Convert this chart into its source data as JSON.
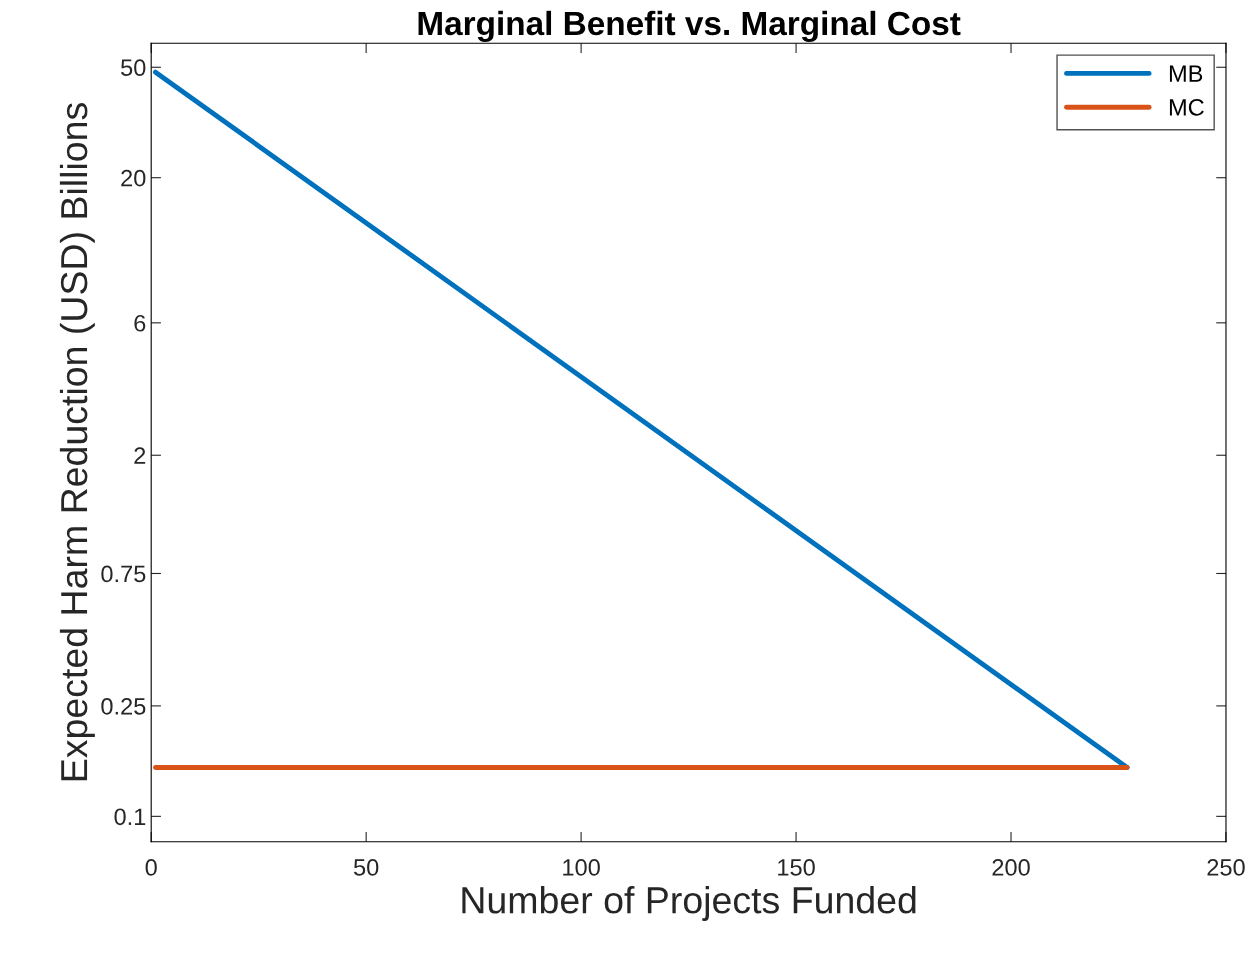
{
  "chart_data": {
    "type": "line",
    "title": "Marginal Benefit vs. Marginal Cost",
    "xlabel": "Number of Projects Funded",
    "ylabel": "Expected Harm Reduction (USD) Billions",
    "x": [
      1,
      227
    ],
    "series": [
      {
        "name": "MB",
        "color": "#0072bd",
        "values": [
          48,
          0.15
        ]
      },
      {
        "name": "MC",
        "color": "#d95319",
        "values": [
          0.15,
          0.15
        ]
      }
    ],
    "log": "y",
    "xlim": [
      0,
      250
    ],
    "ylim": [
      0.081,
      61
    ],
    "xticks": [
      0,
      50,
      100,
      150,
      200,
      250
    ],
    "yticks": [
      0.1,
      0.25,
      0.75,
      2,
      6,
      20,
      50
    ],
    "grid": false,
    "legend": "top right",
    "line_style": "solid",
    "marker": "none"
  }
}
